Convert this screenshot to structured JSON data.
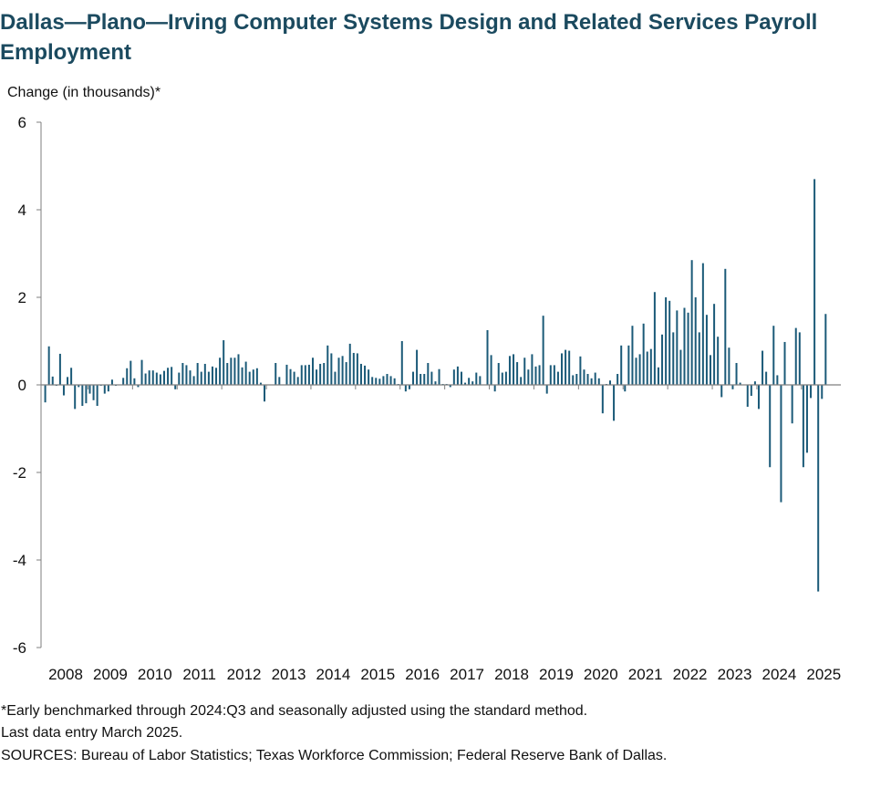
{
  "chart_data": {
    "type": "bar",
    "title": "Dallas—Plano—Irving Computer Systems Design and Related Services Payroll Employment",
    "ylabel": "Change (in thousands)*",
    "xlabel": "",
    "ylim": [
      -6,
      6
    ],
    "yticks": [
      "6",
      "4",
      "2",
      "0",
      "-2",
      "-4",
      "-6"
    ],
    "yticks_values": [
      6,
      4,
      2,
      0,
      -2,
      -4,
      -6
    ],
    "xticks": [
      "2008",
      "2009",
      "2010",
      "2011",
      "2012",
      "2013",
      "2014",
      "2015",
      "2016",
      "2017",
      "2018",
      "2019",
      "2020",
      "2021",
      "2022",
      "2023",
      "2024",
      "2025"
    ],
    "start": "2008-01",
    "end": "2025-03",
    "frequency": "monthly",
    "bar_color": "#1b5a78",
    "axis_color": "#7f7f7f",
    "values": [
      -0.4,
      0.88,
      0.19,
      -0.02,
      0.71,
      -0.24,
      0.18,
      0.39,
      -0.55,
      -0.05,
      -0.48,
      -0.42,
      -0.2,
      -0.35,
      -0.48,
      -0.02,
      -0.2,
      -0.15,
      0.12,
      -0.02,
      0.0,
      0.16,
      0.38,
      0.55,
      0.15,
      -0.05,
      0.57,
      0.26,
      0.33,
      0.33,
      0.28,
      0.24,
      0.32,
      0.39,
      0.41,
      -0.1,
      0.28,
      0.5,
      0.45,
      0.33,
      0.2,
      0.5,
      0.3,
      0.48,
      0.3,
      0.42,
      0.39,
      0.62,
      1.02,
      0.5,
      0.62,
      0.62,
      0.7,
      0.4,
      0.53,
      0.3,
      0.35,
      0.38,
      0.05,
      -0.38,
      0.0,
      0.0,
      0.5,
      0.18,
      0.0,
      0.46,
      0.36,
      0.3,
      0.18,
      0.45,
      0.45,
      0.46,
      0.62,
      0.35,
      0.48,
      0.5,
      0.9,
      0.72,
      0.3,
      0.62,
      0.66,
      0.52,
      0.94,
      0.73,
      0.72,
      0.48,
      0.44,
      0.35,
      0.18,
      0.16,
      0.14,
      0.2,
      0.25,
      0.2,
      0.15,
      0.02,
      1.0,
      -0.15,
      -0.1,
      0.3,
      0.8,
      0.25,
      0.25,
      0.5,
      0.3,
      0.08,
      0.36,
      0.02,
      0.02,
      -0.05,
      0.35,
      0.42,
      0.3,
      0.05,
      0.16,
      0.08,
      0.28,
      0.2,
      0.0,
      1.25,
      0.68,
      -0.15,
      0.5,
      0.28,
      0.3,
      0.66,
      0.7,
      0.52,
      0.18,
      0.62,
      0.35,
      0.7,
      0.42,
      0.45,
      1.58,
      -0.2,
      0.45,
      0.45,
      0.3,
      0.72,
      0.8,
      0.78,
      0.22,
      0.25,
      0.65,
      0.35,
      0.25,
      0.15,
      0.28,
      0.15,
      -0.65,
      0.02,
      0.1,
      -0.82,
      0.25,
      0.9,
      -0.15,
      0.9,
      1.35,
      0.62,
      0.7,
      1.4,
      0.76,
      0.82,
      2.12,
      0.4,
      1.15,
      2.0,
      1.92,
      1.2,
      1.7,
      0.8,
      1.76,
      1.65,
      2.85,
      2.0,
      1.2,
      2.78,
      1.6,
      0.68,
      1.85,
      1.1,
      -0.28,
      2.65,
      0.85,
      -0.1,
      0.5,
      0.05,
      0.0,
      -0.5,
      -0.25,
      0.08,
      -0.55,
      0.78,
      0.3,
      -1.88,
      1.35,
      0.22,
      -2.68,
      0.98,
      0.0,
      -0.88,
      1.3,
      1.2,
      -1.88,
      -1.55,
      -0.3,
      4.7,
      -4.72,
      -0.32,
      1.62
    ],
    "footnotes": [
      "*Early benchmarked through 2024:Q3 and seasonally adjusted using the standard method.",
      "Last data entry March 2025.",
      "SOURCES: Bureau of Labor Statistics; Texas Workforce Commission; Federal Reserve Bank of Dallas."
    ]
  }
}
